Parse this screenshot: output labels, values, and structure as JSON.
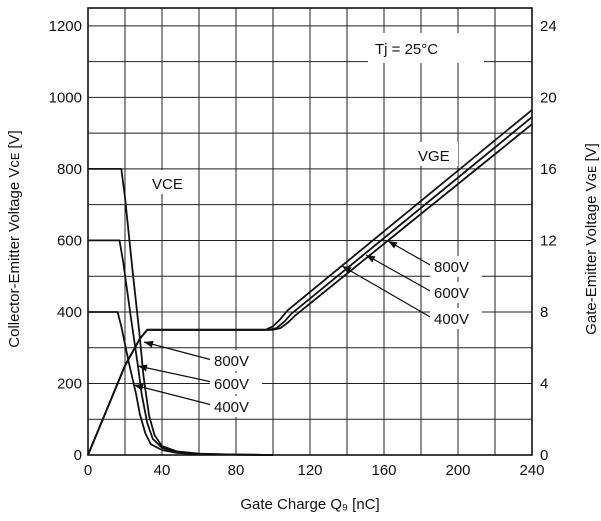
{
  "chart_data": {
    "type": "line",
    "title": "",
    "xlabel": "Gate Charge Q₉ [nC]",
    "ylabel": "Collector-Emitter Voltage Vᴄᴇ [V]",
    "y2label": "Gate-Emitter Voltage Vɢᴇ [V]",
    "xlim": [
      0,
      240
    ],
    "ylim": [
      0,
      1250
    ],
    "y2lim": [
      0,
      25
    ],
    "x_ticks": [
      "0",
      "40",
      "80",
      "120",
      "160",
      "200",
      "240"
    ],
    "y_ticks": [
      "0",
      "200",
      "400",
      "600",
      "800",
      "1000",
      "1200"
    ],
    "y2_ticks": [
      "0",
      "4",
      "8",
      "12",
      "16",
      "20",
      "24"
    ],
    "grid": true,
    "annotations": {
      "condition": "Tj =  25°C",
      "vce_label": "VCE",
      "vge_label": "VGE",
      "vce_800": "800V",
      "vce_600": "600V",
      "vce_400": "400V",
      "vge_800": "800V",
      "vge_600": "600V",
      "vge_400": "400V"
    },
    "vce_series": [
      {
        "name": "800V",
        "x": [
          0,
          18,
          20,
          24,
          28,
          30,
          33,
          36,
          40,
          48,
          60,
          80,
          100
        ],
        "y": [
          800,
          800,
          720,
          520,
          330,
          220,
          110,
          55,
          25,
          10,
          4,
          1,
          0
        ]
      },
      {
        "name": "600V",
        "x": [
          0,
          17,
          19,
          23,
          27,
          29,
          32,
          35,
          40,
          48,
          60,
          80,
          100
        ],
        "y": [
          600,
          600,
          540,
          390,
          250,
          170,
          90,
          45,
          20,
          8,
          3,
          1,
          0
        ]
      },
      {
        "name": "400V",
        "x": [
          0,
          16,
          18,
          22,
          26,
          28,
          31,
          34,
          40,
          48,
          60,
          80,
          100
        ],
        "y": [
          400,
          400,
          360,
          260,
          170,
          115,
          60,
          30,
          14,
          6,
          2,
          1,
          0
        ]
      }
    ],
    "vge_series": [
      {
        "name": "800V",
        "x": [
          0,
          10,
          20,
          28,
          32,
          96,
          100,
          104,
          108,
          240
        ],
        "y": [
          0,
          2.5,
          5.0,
          6.5,
          7.0,
          7.0,
          7.2,
          7.6,
          8.1,
          19.3
        ]
      },
      {
        "name": "600V",
        "x": [
          0,
          10,
          20,
          28,
          32,
          98,
          102,
          106,
          110,
          240
        ],
        "y": [
          0,
          2.5,
          5.0,
          6.5,
          7.0,
          7.0,
          7.1,
          7.45,
          7.9,
          18.9
        ]
      },
      {
        "name": "400V",
        "x": [
          0,
          10,
          20,
          28,
          32,
          100,
          104,
          108,
          112,
          240
        ],
        "y": [
          0,
          2.5,
          5.0,
          6.5,
          7.0,
          7.0,
          7.1,
          7.4,
          7.8,
          18.5
        ]
      }
    ]
  }
}
